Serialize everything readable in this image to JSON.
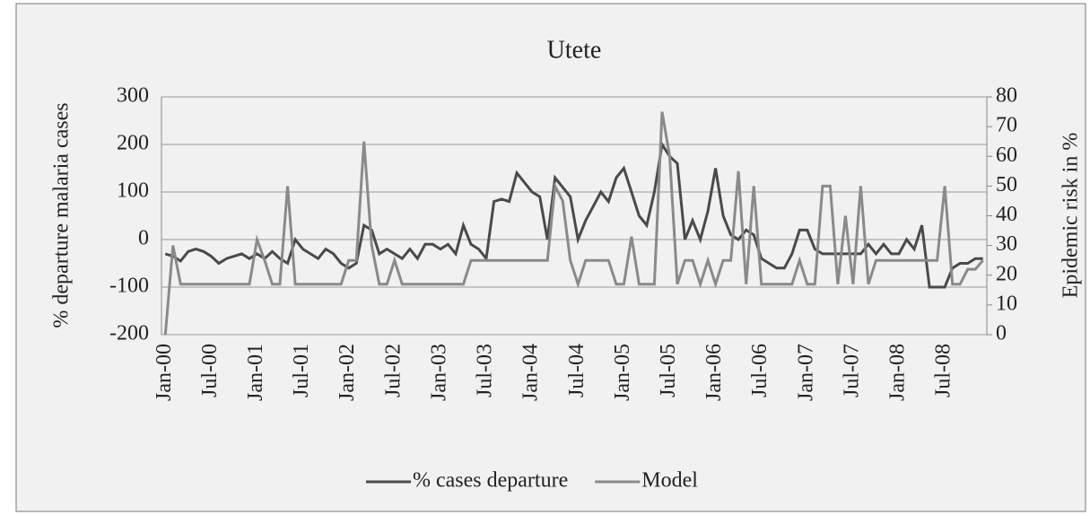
{
  "chart_data": {
    "type": "line",
    "title": "Utete",
    "y_label": "% departure malaria cases",
    "y2_label": "Epidemic risk in %",
    "categories": [
      "Jan-00",
      null,
      null,
      null,
      null,
      null,
      "Jul-00",
      null,
      null,
      null,
      null,
      null,
      "Jan-01",
      null,
      null,
      null,
      null,
      null,
      "Jul-01",
      null,
      null,
      null,
      null,
      null,
      "Jan-02",
      null,
      null,
      null,
      null,
      null,
      "Jul-02",
      null,
      null,
      null,
      null,
      null,
      "Jan-03",
      null,
      null,
      null,
      null,
      null,
      "Jul-03",
      null,
      null,
      null,
      null,
      null,
      "Jan-04",
      null,
      null,
      null,
      null,
      null,
      "Jul-04",
      null,
      null,
      null,
      null,
      null,
      "Jan-05",
      null,
      null,
      null,
      null,
      null,
      "Jul-05",
      null,
      null,
      null,
      null,
      null,
      "Jan-06",
      null,
      null,
      null,
      null,
      null,
      "Jul-06",
      null,
      null,
      null,
      null,
      null,
      "Jan-07",
      null,
      null,
      null,
      null,
      null,
      "Jul-07",
      null,
      null,
      null,
      null,
      null,
      "Jan-08",
      null,
      null,
      null,
      null,
      null,
      "Jul-08",
      null,
      null,
      null,
      null,
      null
    ],
    "series": [
      {
        "name": "% cases departure",
        "color": "#4a4a4a",
        "values": [
          -30,
          -35,
          -45,
          -25,
          -20,
          -25,
          -35,
          -50,
          -40,
          -35,
          -30,
          -40,
          -30,
          -40,
          -25,
          -40,
          -50,
          0,
          -20,
          -30,
          -40,
          -20,
          -30,
          -50,
          -60,
          -50,
          30,
          20,
          -30,
          -20,
          -30,
          -40,
          -20,
          -40,
          -10,
          -10,
          -20,
          -10,
          -30,
          30,
          -10,
          -20,
          -40,
          80,
          85,
          80,
          140,
          120,
          100,
          90,
          0,
          130,
          110,
          90,
          0,
          40,
          70,
          100,
          80,
          130,
          150,
          100,
          50,
          30,
          100,
          200,
          175,
          160,
          0,
          40,
          0,
          60,
          150,
          50,
          10,
          0,
          20,
          10,
          -40,
          -50,
          -60,
          -60,
          -30,
          20,
          20,
          -20,
          -30,
          -30,
          -30,
          -30,
          -30,
          -30,
          -10,
          -30,
          -10,
          -30,
          -30,
          0,
          -20,
          30,
          -100,
          -100,
          -100,
          -60,
          -50,
          -50,
          -40,
          -40
        ]
      },
      {
        "name": "Model",
        "color": "#8a8a8a",
        "axis": "y2",
        "values": [
          0,
          30,
          17,
          17,
          17,
          17,
          17,
          17,
          17,
          17,
          17,
          17,
          32,
          25,
          17,
          17,
          50,
          17,
          17,
          17,
          17,
          17,
          17,
          17,
          25,
          25,
          65,
          30,
          17,
          17,
          25,
          17,
          17,
          17,
          17,
          17,
          17,
          17,
          17,
          17,
          25,
          25,
          25,
          25,
          25,
          25,
          25,
          25,
          25,
          25,
          25,
          50,
          45,
          25,
          17,
          25,
          25,
          25,
          25,
          17,
          17,
          33,
          17,
          17,
          17,
          75,
          60,
          17,
          25,
          25,
          17,
          25,
          17,
          25,
          25,
          55,
          17,
          50,
          17,
          17,
          17,
          17,
          17,
          25,
          17,
          17,
          50,
          50,
          17,
          40,
          17,
          50,
          17,
          25,
          25,
          25,
          25,
          25,
          25,
          25,
          25,
          25,
          50,
          17,
          17,
          22,
          22,
          25
        ]
      }
    ],
    "ylim": [
      -200,
      300
    ],
    "yticks": [
      -200,
      -100,
      0,
      100,
      200,
      300
    ],
    "y2lim": [
      0,
      80
    ],
    "y2ticks": [
      0,
      10,
      20,
      30,
      40,
      50,
      60,
      70,
      80
    ],
    "grid": true,
    "legend": "bottom"
  }
}
